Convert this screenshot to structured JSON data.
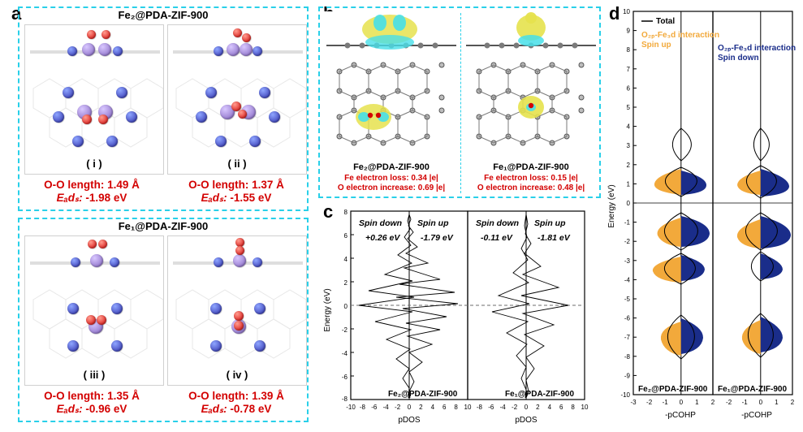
{
  "panel_a": {
    "label": "a",
    "box_color": "#29d0e9",
    "title_top": "Fe₂@PDA-ZIF-900",
    "title_bottom": "Fe₁@PDA-ZIF-900",
    "sub": [
      {
        "roman": "( i )",
        "oo": "O-O length: 1.49 Å",
        "eads_label": "Eₐdₛ:",
        "eads": "-1.98 eV"
      },
      {
        "roman": "( ii )",
        "oo": "O-O length: 1.37 Å",
        "eads_label": "Eₐdₛ:",
        "eads": "-1.55 eV"
      },
      {
        "roman": "( iii )",
        "oo": "O-O length: 1.35 Å",
        "eads_label": "Eₐdₛ:",
        "eads": "-0.96 eV"
      },
      {
        "roman": "( iv )",
        "oo": "O-O length: 1.39 Å",
        "eads_label": "Eₐdₛ:",
        "eads": "-0.78 eV"
      }
    ],
    "atom_colors": {
      "fe": "#7e5fbe",
      "n": "#2a2aa8",
      "o": "#d40000",
      "c_line": "#bcbcbc"
    }
  },
  "panel_b": {
    "label": "b",
    "box_color": "#29d0e9",
    "colors": {
      "yellow_iso": "#e6e24d",
      "cyan_iso": "#47dfe9",
      "carbon": "#7a7a7a"
    },
    "left": {
      "title": "Fe₂@PDA-ZIF-900",
      "line1": "Fe  electron  loss: 0.34 |e|",
      "line2": "O electron increase: 0.69 |e|"
    },
    "right": {
      "title": "Fe₁@PDA-ZIF-900",
      "line1": "Fe  electron  loss: 0.15 |e|",
      "line2": "O electron increase: 0.48 |e|"
    }
  },
  "panel_c": {
    "label": "c",
    "xlabel": "pDOS",
    "ylabel": "Energy (eV)",
    "ylim": [
      -8,
      8
    ],
    "ytick_step": 2,
    "xlim": [
      -10,
      10
    ],
    "xtick_step": 2,
    "line_color": "#000000",
    "fermi_dash_color": "#6d6d6d",
    "panels": [
      {
        "title": "Fe₂@PDA-ZIF-900",
        "spin_down": "+0.26 eV",
        "spin_up": "-1.79 eV"
      },
      {
        "title": "Fe₁@PDA-ZIF-900",
        "spin_down": "-0.11 eV",
        "spin_up": "-1.81 eV"
      }
    ]
  },
  "panel_d": {
    "label": "d",
    "xlabel": "-pCOHP",
    "ylabel": "Energy (eV)",
    "ylim": [
      -10,
      10
    ],
    "ytick_step": 1,
    "xlim": [
      -3,
      2
    ],
    "xticks": [
      -3,
      -2,
      -1,
      0,
      1,
      2
    ],
    "legend": {
      "total": {
        "text": "Total",
        "color": "#000000"
      },
      "spin_up": {
        "text": "O₂ₚ-Fe₃d interaction\nSpin up",
        "color": "#f2a93b"
      },
      "spin_down": {
        "text": "O₂ₚ-Fe₃d interaction\nSpin down",
        "color": "#1a2d8a"
      }
    },
    "panels": [
      {
        "title": "Fe₂@PDA-ZIF-900"
      },
      {
        "title": "Fe₁@PDA-ZIF-900"
      }
    ],
    "colors": {
      "total": "#000000",
      "up": "#f2a93b",
      "down": "#1a2d8a"
    }
  }
}
